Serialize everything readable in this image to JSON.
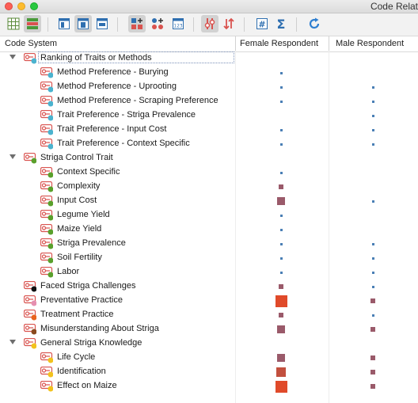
{
  "window": {
    "title": "Code Relat"
  },
  "toolbar": {
    "buttons": [
      {
        "icon": "table-grid-icon",
        "active": false
      },
      {
        "icon": "row-stack-icon",
        "active": true
      },
      {
        "icon": "layout-top-icon",
        "active": false
      },
      {
        "icon": "layout-middle-icon",
        "active": true
      },
      {
        "icon": "layout-center-icon",
        "active": false
      },
      {
        "icon": "grid-plus-icon",
        "active": true
      },
      {
        "icon": "node-plus-icon",
        "active": false
      },
      {
        "icon": "calendar-123-icon",
        "active": false
      },
      {
        "icon": "filter-toggle-icon",
        "active": true
      },
      {
        "icon": "sort-toggle-icon",
        "active": false
      },
      {
        "icon": "hash-icon",
        "active": false
      },
      {
        "icon": "sigma-icon",
        "active": false
      },
      {
        "icon": "refresh-icon",
        "active": false
      }
    ]
  },
  "header": {
    "col_code_system": "Code System",
    "col_female": "Female Respondent",
    "col_male": "Male Respondent"
  },
  "colors": {
    "small_mark": "#4a7fb5",
    "medium_mark": "#9a5a6a",
    "large_mark": "#e04a2a"
  },
  "tree": [
    {
      "label": "Ranking of Traits or Methods",
      "level": 0,
      "expanded": true,
      "dot": "#4bb3cf",
      "focused": true,
      "female": null,
      "male": null
    },
    {
      "label": "Method Preference - Burying",
      "level": 1,
      "dot": "#4bb3cf",
      "female": "dot",
      "male": null
    },
    {
      "label": "Method Preference - Uprooting",
      "level": 1,
      "dot": "#4bb3cf",
      "female": "dot",
      "male": "dot"
    },
    {
      "label": "Method Preference - Scraping Preference",
      "level": 1,
      "dot": "#4bb3cf",
      "female": "dot",
      "male": "dot"
    },
    {
      "label": "Trait Preference - Striga Prevalence",
      "level": 1,
      "dot": "#4bb3cf",
      "female": null,
      "male": "dot"
    },
    {
      "label": "Trait Preference - Input Cost",
      "level": 1,
      "dot": "#4bb3cf",
      "female": "dot",
      "male": "dot"
    },
    {
      "label": "Trait Preference - Context Specific",
      "level": 1,
      "dot": "#4bb3cf",
      "female": "dot",
      "male": "dot"
    },
    {
      "label": "Striga Control Trait",
      "level": 0,
      "expanded": true,
      "dot": "#5aa02c",
      "female": null,
      "male": null
    },
    {
      "label": "Context Specific",
      "level": 1,
      "dot": "#5aa02c",
      "female": "dot",
      "male": null
    },
    {
      "label": "Complexity",
      "level": 1,
      "dot": "#5aa02c",
      "female": "small",
      "male": null
    },
    {
      "label": "Input Cost",
      "level": 1,
      "dot": "#5aa02c",
      "female": "medium",
      "male": "dot"
    },
    {
      "label": "Legume Yield",
      "level": 1,
      "dot": "#5aa02c",
      "female": "dot",
      "male": null
    },
    {
      "label": "Maize Yield",
      "level": 1,
      "dot": "#5aa02c",
      "female": "dot",
      "male": null
    },
    {
      "label": "Striga Prevalence",
      "level": 1,
      "dot": "#5aa02c",
      "female": "dot",
      "male": "dot"
    },
    {
      "label": "Soil Fertility",
      "level": 1,
      "dot": "#5aa02c",
      "female": "dot",
      "male": "dot"
    },
    {
      "label": "Labor",
      "level": 1,
      "dot": "#5aa02c",
      "female": "dot",
      "male": "dot"
    },
    {
      "label": "Faced Striga Challenges",
      "level": 0,
      "dot": "#111111",
      "female": "small",
      "male": "dot"
    },
    {
      "label": "Preventative Practice",
      "level": 0,
      "dot": "#e58fb0",
      "female": "large",
      "male": "small"
    },
    {
      "label": "Treatment Practice",
      "level": 0,
      "dot": "#e8641e",
      "female": "small",
      "male": "dot"
    },
    {
      "label": "Misunderstanding About Striga",
      "level": 0,
      "dot": "#8a4a1e",
      "female": "medium",
      "male": "small"
    },
    {
      "label": "General Striga Knowledge",
      "level": 0,
      "expanded": true,
      "dot": "#f2c21e",
      "female": null,
      "male": null
    },
    {
      "label": "Life Cycle",
      "level": 1,
      "dot": "#f2c21e",
      "female": "medium",
      "male": "small"
    },
    {
      "label": "Identification",
      "level": 1,
      "dot": "#f2c21e",
      "female": "mediumred",
      "male": "small"
    },
    {
      "label": "Effect on Maize",
      "level": 1,
      "dot": "#f2c21e",
      "female": "large",
      "male": "small"
    }
  ]
}
